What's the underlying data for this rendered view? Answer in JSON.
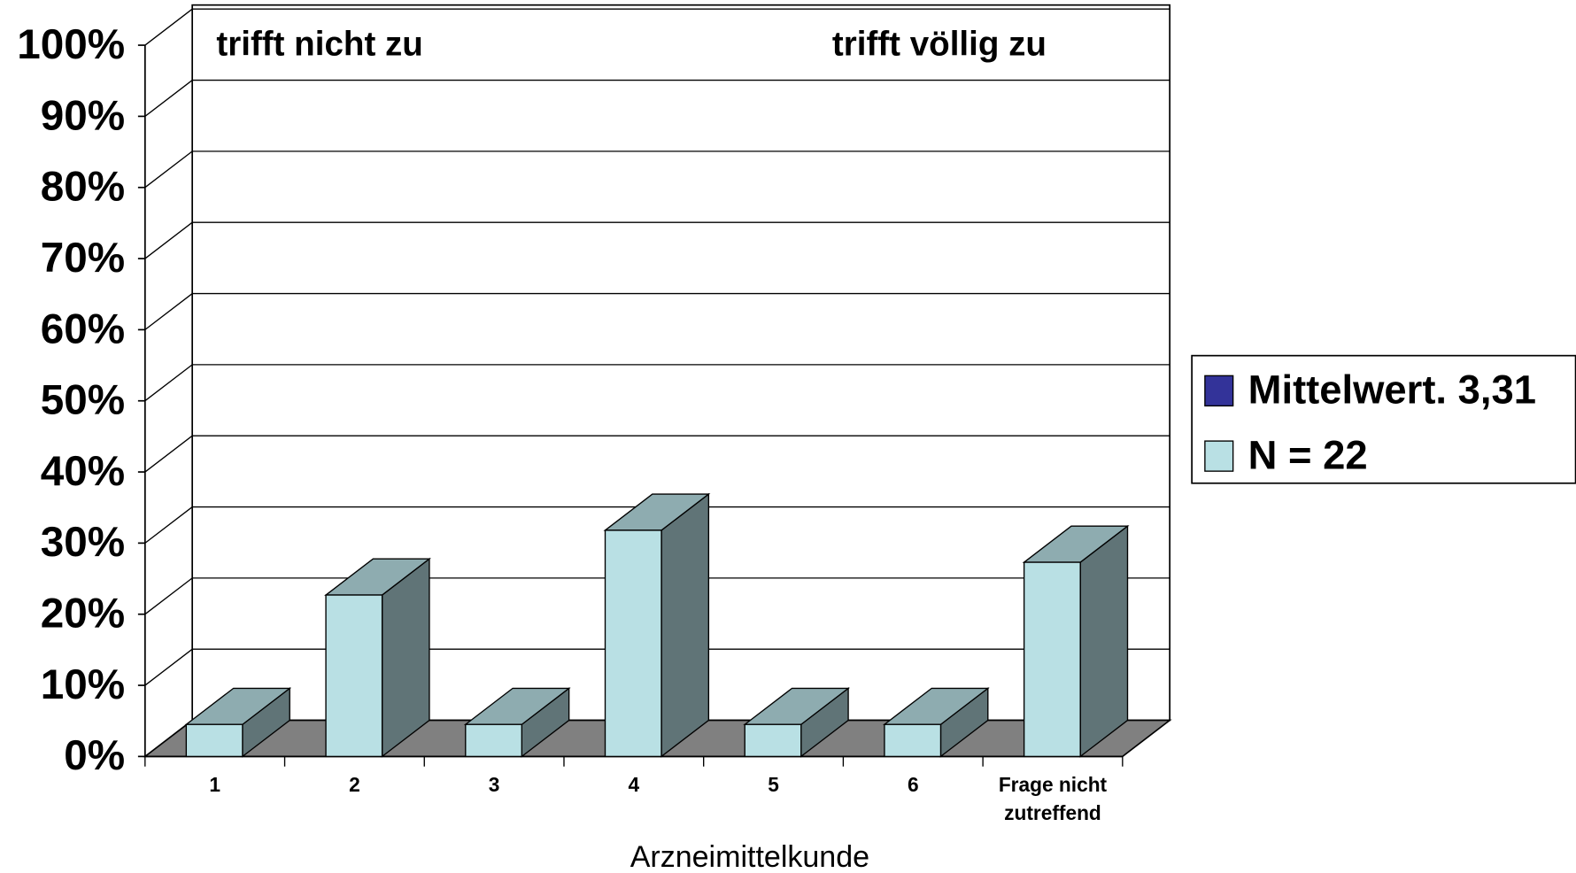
{
  "chart_data": {
    "type": "bar3d",
    "annotations": [
      "trifft nicht zu",
      "trifft völlig zu"
    ],
    "x_label": "Arzneimittelkunde",
    "categories": [
      "1",
      "2",
      "3",
      "4",
      "5",
      "6",
      "Frage nicht zutreffend"
    ],
    "series": [
      {
        "name": "Mittelwert. 3,31",
        "color": "#333399",
        "values": [
          null,
          null,
          null,
          null,
          null,
          null,
          null
        ]
      },
      {
        "name": "N = 22",
        "color": "#b9e0e4",
        "values": [
          4.5,
          22.7,
          4.5,
          31.8,
          4.5,
          4.5,
          27.3
        ]
      }
    ],
    "ylim": [
      0,
      100
    ],
    "yticks": [
      {
        "value": 0,
        "label": "0%"
      },
      {
        "value": 10,
        "label": "10%"
      },
      {
        "value": 20,
        "label": "20%"
      },
      {
        "value": 30,
        "label": "30%"
      },
      {
        "value": 40,
        "label": "40%"
      },
      {
        "value": 50,
        "label": "50%"
      },
      {
        "value": 60,
        "label": "60%"
      },
      {
        "value": 70,
        "label": "70%"
      },
      {
        "value": 80,
        "label": "80%"
      },
      {
        "value": 90,
        "label": "90%"
      },
      {
        "value": 100,
        "label": "100%"
      }
    ],
    "grid": true,
    "legend": "right"
  }
}
